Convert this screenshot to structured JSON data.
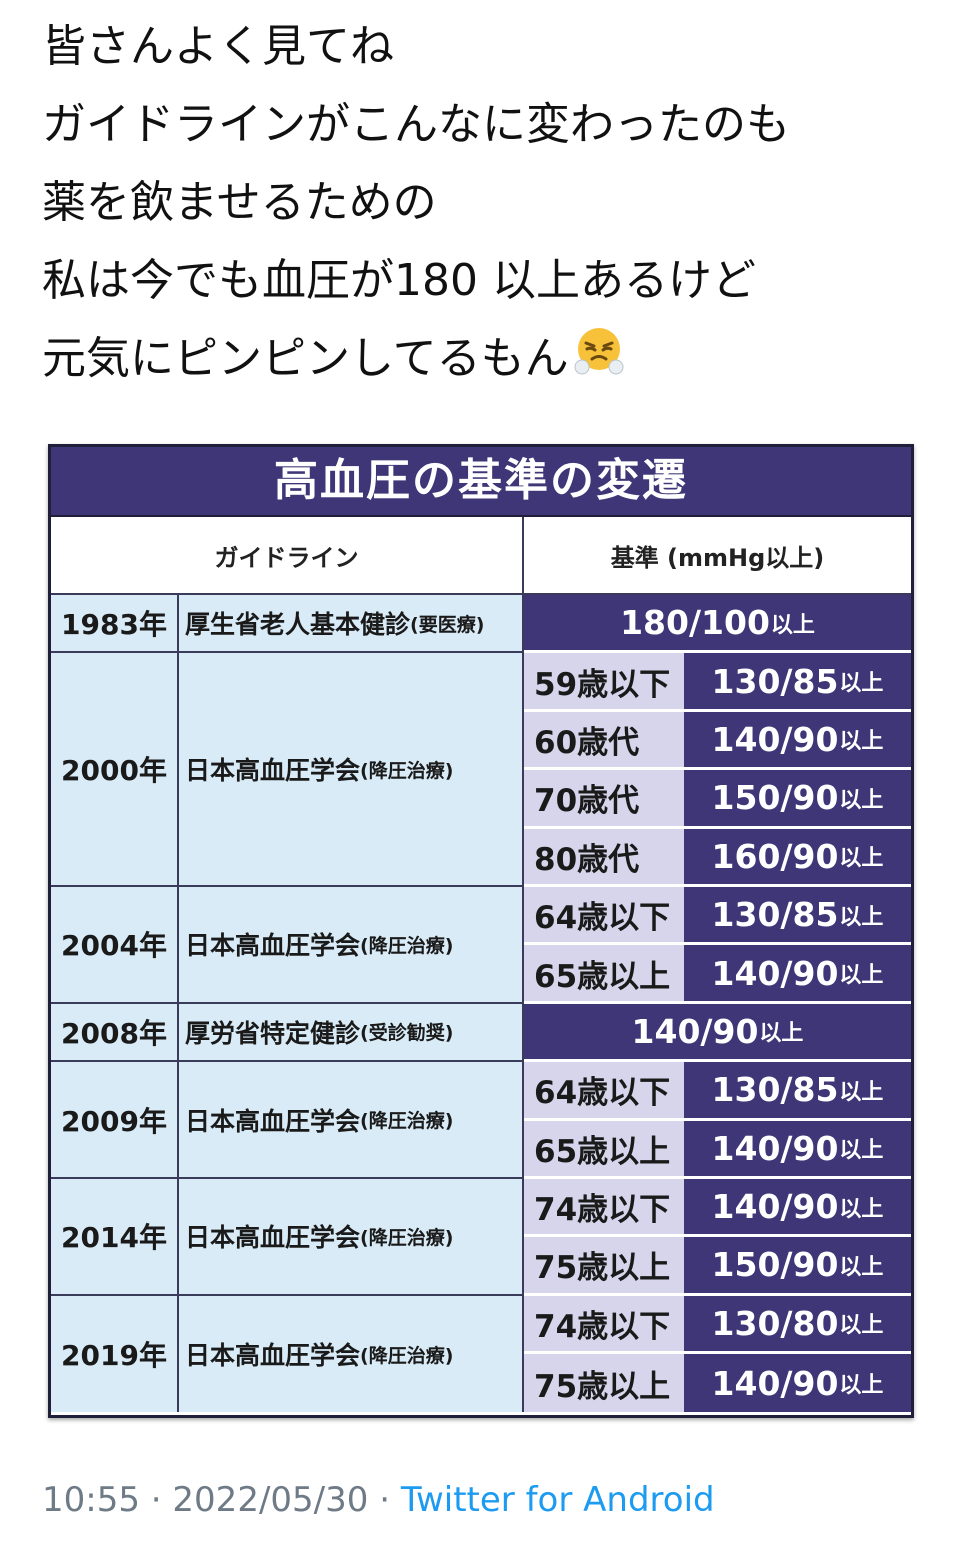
{
  "tweet": {
    "lines": [
      "皆さんよく見てね",
      "ガイドラインがこんなに変わったのも",
      "薬を飲ませるための",
      "私は今でも血圧が180 以上あるけど",
      "元気にピンピンしてるもん"
    ],
    "emoji": "face-with-steam-from-nose-icon"
  },
  "infographic": {
    "title": "高血圧の基準の変遷",
    "header": {
      "guideline": "ガイドライン",
      "standard": "基準 (mmHg以上)"
    },
    "unit": "以上",
    "rows": [
      {
        "year": "1983年",
        "org": "厚生省老人基本健診",
        "note": "(要医療)",
        "value": "180/100"
      },
      {
        "year": "2000年",
        "org": "日本高血圧学会",
        "note": "(降圧治療)",
        "groups": [
          {
            "age": "59歳以下",
            "value": "130/85"
          },
          {
            "age": "60歳代",
            "value": "140/90"
          },
          {
            "age": "70歳代",
            "value": "150/90"
          },
          {
            "age": "80歳代",
            "value": "160/90"
          }
        ]
      },
      {
        "year": "2004年",
        "org": "日本高血圧学会",
        "note": "(降圧治療)",
        "groups": [
          {
            "age": "64歳以下",
            "value": "130/85"
          },
          {
            "age": "65歳以上",
            "value": "140/90"
          }
        ]
      },
      {
        "year": "2008年",
        "org": "厚労省特定健診",
        "note": "(受診勧奨)",
        "value": "140/90"
      },
      {
        "year": "2009年",
        "org": "日本高血圧学会",
        "note": "(降圧治療)",
        "groups": [
          {
            "age": "64歳以下",
            "value": "130/85"
          },
          {
            "age": "65歳以上",
            "value": "140/90"
          }
        ]
      },
      {
        "year": "2014年",
        "org": "日本高血圧学会",
        "note": "(降圧治療)",
        "groups": [
          {
            "age": "74歳以下",
            "value": "140/90"
          },
          {
            "age": "75歳以上",
            "value": "150/90"
          }
        ]
      },
      {
        "year": "2019年",
        "org": "日本高血圧学会",
        "note": "(降圧治療)",
        "groups": [
          {
            "age": "74歳以下",
            "value": "130/80"
          },
          {
            "age": "75歳以上",
            "value": "140/90"
          }
        ]
      }
    ]
  },
  "footer": {
    "time": "10:55",
    "separator": " · ",
    "date": "2022/05/30",
    "source": "Twitter for Android"
  }
}
